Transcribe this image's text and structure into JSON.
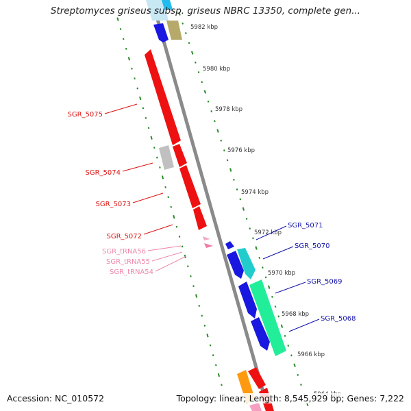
{
  "title": "Streptomyces griseus subsp. griseus NBRC 13350, complete gen...",
  "footer": {
    "accession": "Accession: NC_010572",
    "topology": "Topology: linear; Length: 8,545,929 bp; Genes: 7,222"
  },
  "colors": {
    "backbone": "#888888",
    "tick": "#2a8a2a",
    "reverse_label": "#dd1111",
    "forward_label": "#1111aa",
    "trna_label": "#ee88aa"
  },
  "kbp_labels": [
    "5982 kbp",
    "5980 kbp",
    "5978 kbp",
    "5976 kbp",
    "5974 kbp",
    "5972 kbp",
    "5970 kbp",
    "5968 kbp",
    "5966 kbp",
    "5964 kbp"
  ],
  "gene_labels": {
    "reverse": [
      "SGR_5075",
      "SGR_5074",
      "SGR_5073",
      "SGR_5072"
    ],
    "trna": [
      "SGR_tRNA56",
      "SGR_tRNA55",
      "SGR_tRNA54"
    ],
    "forward": [
      "SGR_5071",
      "SGR_5070",
      "SGR_5069",
      "SGR_5068"
    ]
  }
}
